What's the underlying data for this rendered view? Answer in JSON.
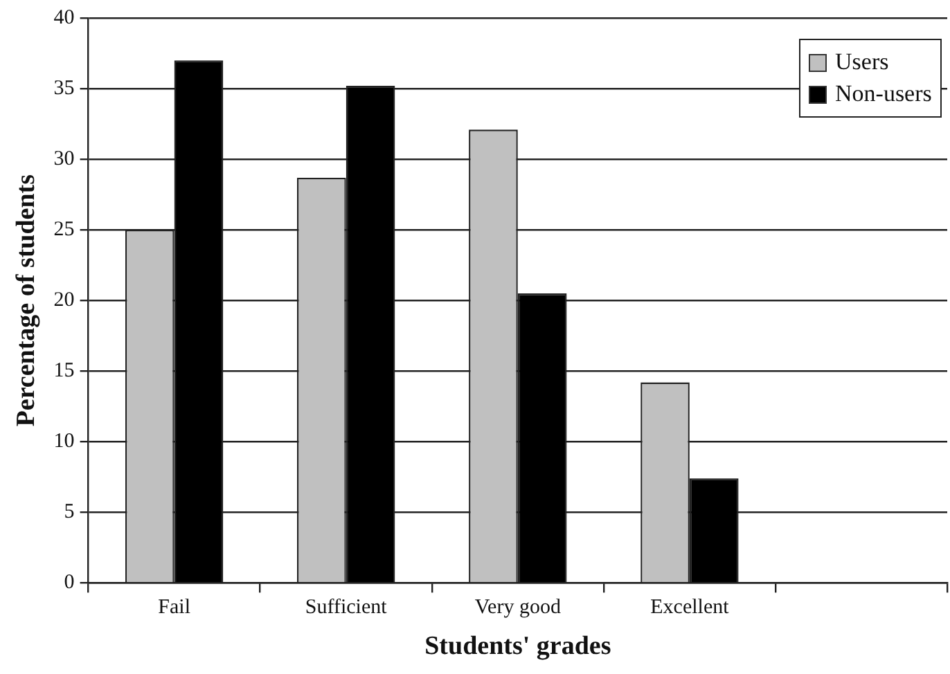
{
  "chart_data": {
    "type": "bar",
    "xlabel": "Students' grades",
    "ylabel": "Percentage of students",
    "categories": [
      "Fail",
      "Sufficient",
      "Very good",
      "Excellent",
      null
    ],
    "series": [
      {
        "name": "Users",
        "color": "#c0c0c0",
        "values": [
          25.0,
          28.7,
          32.1,
          14.2,
          null
        ]
      },
      {
        "name": "Non-users",
        "color": "#000000",
        "values": [
          37.0,
          35.2,
          20.5,
          7.4,
          null
        ]
      }
    ],
    "ylim": [
      0,
      40
    ],
    "yticks": [
      0,
      5,
      10,
      15,
      20,
      25,
      30,
      35,
      40
    ],
    "grid": "y",
    "legend": "top right"
  }
}
